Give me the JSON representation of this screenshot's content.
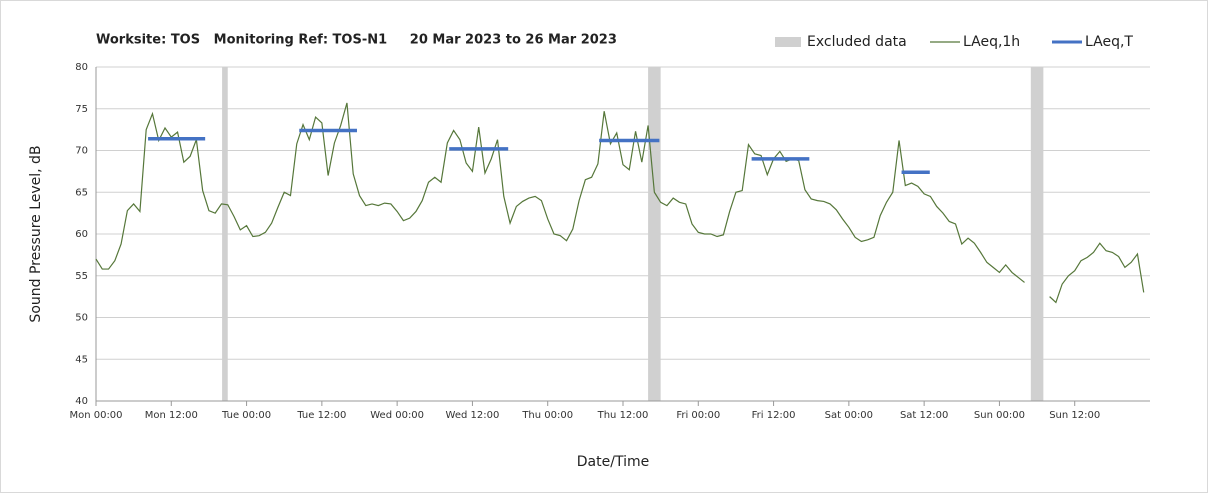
{
  "chart_data": {
    "type": "line",
    "title": "Worksite: TOS   Monitoring Ref: TOS-N1     20 Mar 2023 to 26 Mar 2023",
    "x_label": "Date/Time",
    "y_label": "Sound Pressure Level, dB",
    "xlim": [
      0,
      168
    ],
    "ylim": [
      40,
      80
    ],
    "xticks": [
      {
        "value": 0,
        "label": "Mon 00:00"
      },
      {
        "value": 12,
        "label": "Mon 12:00"
      },
      {
        "value": 24,
        "label": "Tue 00:00"
      },
      {
        "value": 36,
        "label": "Tue 12:00"
      },
      {
        "value": 48,
        "label": "Wed 00:00"
      },
      {
        "value": 60,
        "label": "Wed 12:00"
      },
      {
        "value": 72,
        "label": "Thu 00:00"
      },
      {
        "value": 84,
        "label": "Thu 12:00"
      },
      {
        "value": 96,
        "label": "Fri 00:00"
      },
      {
        "value": 108,
        "label": "Fri 12:00"
      },
      {
        "value": 120,
        "label": "Sat 00:00"
      },
      {
        "value": 132,
        "label": "Sat 12:00"
      },
      {
        "value": 144,
        "label": "Sun 00:00"
      },
      {
        "value": 156,
        "label": "Sun 12:00"
      }
    ],
    "yticks": [
      40,
      45,
      50,
      55,
      60,
      65,
      70,
      75,
      80
    ],
    "grid": true,
    "excluded": {
      "name": "Excluded data",
      "color": "#d0d0d0",
      "ranges": [
        [
          20.1,
          21.0
        ],
        [
          88.0,
          90.0
        ],
        [
          149.0,
          151.0
        ]
      ]
    },
    "x": [
      0,
      1,
      2,
      3,
      4,
      5,
      6,
      7,
      8,
      9,
      10,
      11,
      12,
      13,
      14,
      15,
      16,
      17,
      18,
      19,
      20,
      21,
      22,
      23,
      24,
      25,
      26,
      27,
      28,
      29,
      30,
      31,
      32,
      33,
      34,
      35,
      36,
      37,
      38,
      39,
      40,
      41,
      42,
      43,
      44,
      45,
      46,
      47,
      48,
      49,
      50,
      51,
      52,
      53,
      54,
      55,
      56,
      57,
      58,
      59,
      60,
      61,
      62,
      63,
      64,
      65,
      66,
      67,
      68,
      69,
      70,
      71,
      72,
      73,
      74,
      75,
      76,
      77,
      78,
      79,
      80,
      81,
      82,
      83,
      84,
      85,
      86,
      87,
      88,
      89,
      90,
      91,
      92,
      93,
      94,
      95,
      96,
      97,
      98,
      99,
      100,
      101,
      102,
      103,
      104,
      105,
      106,
      107,
      108,
      109,
      110,
      111,
      112,
      113,
      114,
      115,
      116,
      117,
      118,
      119,
      120,
      121,
      122,
      123,
      124,
      125,
      126,
      127,
      128,
      129,
      130,
      131,
      132,
      133,
      134,
      135,
      136,
      137,
      138,
      139,
      140,
      141,
      142,
      143,
      144,
      145,
      146,
      147,
      148,
      149,
      150,
      151,
      152,
      153,
      154,
      155,
      156,
      157,
      158,
      159,
      160,
      161,
      162,
      163,
      164,
      165,
      166,
      167
    ],
    "series": [
      {
        "name": "LAeq,1h",
        "color": "#56773a",
        "values": [
          57,
          55.8,
          55.8,
          56.8,
          58.8,
          62.8,
          63.6,
          62.7,
          72.5,
          74.4,
          71.2,
          72.7,
          71.6,
          72.2,
          68.6,
          69.3,
          71.3,
          65.2,
          62.8,
          62.5,
          63.6,
          63.5,
          62.1,
          60.5,
          61.0,
          59.7,
          59.8,
          60.2,
          61.3,
          63.2,
          65.0,
          64.6,
          70.8,
          73.1,
          71.3,
          74.0,
          73.3,
          67.0,
          70.9,
          73.0,
          75.7,
          67.2,
          64.6,
          63.4,
          63.6,
          63.4,
          63.7,
          63.6,
          62.7,
          61.6,
          61.9,
          62.7,
          64.0,
          66.2,
          66.8,
          66.2,
          70.9,
          72.4,
          71.3,
          68.5,
          67.5,
          72.8,
          67.3,
          69.0,
          71.3,
          64.5,
          61.3,
          63.3,
          63.9,
          64.3,
          64.5,
          64.0,
          61.8,
          60.0,
          59.8,
          59.2,
          60.6,
          64.0,
          66.5,
          66.8,
          68.4,
          74.7,
          70.8,
          72.1,
          68.3,
          67.7,
          72.3,
          68.6,
          73.0,
          65.0,
          63.8,
          63.4,
          64.3,
          63.8,
          63.6,
          61.2,
          60.2,
          60.0,
          60.0,
          59.7,
          59.9,
          62.7,
          65.0,
          65.2,
          70.7,
          69.6,
          69.4,
          67.1,
          69.0,
          69.9,
          68.7,
          69.0,
          68.8,
          65.3,
          64.2,
          64.0,
          63.9,
          63.6,
          62.9,
          61.8,
          60.8,
          59.6,
          59.1,
          59.3,
          59.6,
          62.2,
          63.8,
          65.0,
          71.2,
          65.8,
          66.1,
          65.7,
          64.8,
          64.5,
          63.3,
          62.5,
          61.5,
          61.2,
          58.8,
          59.5,
          58.9,
          57.8,
          56.6,
          56.0,
          55.4,
          56.3,
          55.4,
          54.8,
          54.2,
          null,
          null,
          null,
          52.5,
          51.8,
          54.0,
          55.0,
          55.6,
          56.8,
          57.2,
          57.8,
          58.9,
          58.0,
          57.8,
          57.3,
          56.0,
          56.6,
          57.6,
          53.0
        ]
      },
      {
        "name": "LAeq,T",
        "color": "#4472c4",
        "segments": [
          {
            "start": 8.3,
            "end": 17.4,
            "value": 71.4
          },
          {
            "start": 32.4,
            "end": 41.6,
            "value": 72.4
          },
          {
            "start": 56.3,
            "end": 65.7,
            "value": 70.2
          },
          {
            "start": 80.2,
            "end": 89.8,
            "value": 71.2
          },
          {
            "start": 104.5,
            "end": 113.7,
            "value": 69.0
          },
          {
            "start": 128.4,
            "end": 132.9,
            "value": 67.4
          }
        ]
      }
    ]
  }
}
